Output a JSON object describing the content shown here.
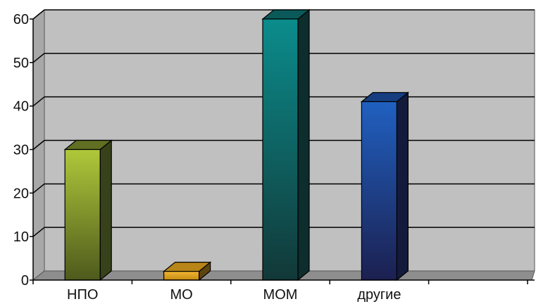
{
  "chart_data": {
    "type": "bar",
    "style": "3d-column",
    "categories": [
      "НПО",
      "МО",
      "МОМ",
      "другие",
      ""
    ],
    "values": [
      30,
      2,
      60,
      41,
      null
    ],
    "y_ticks": [
      "0",
      "10",
      "20",
      "30",
      "40",
      "50",
      "60"
    ],
    "ylim": [
      0,
      60
    ],
    "grid": true,
    "legend": "none",
    "title": "",
    "xlabel": "",
    "ylabel": "",
    "colors": {
      "plot_wall": "#c0c0c0",
      "floor": "#8e8e8e",
      "bars": [
        {
          "front_top": "#b0c83a",
          "front_bottom": "#4d5a1c",
          "side": "#38421a",
          "top": "#606f22"
        },
        {
          "front_top": "#f2b533",
          "front_bottom": "#c68b12",
          "side": "#5e4510",
          "top": "#b78518"
        },
        {
          "front_top": "#0b8c8c",
          "front_bottom": "#123838",
          "side": "#0e2d2d",
          "top": "#0b5a5a"
        },
        {
          "front_top": "#2060c0",
          "front_bottom": "#1c2050",
          "side": "#141a3c",
          "top": "#163d80"
        }
      ]
    }
  }
}
